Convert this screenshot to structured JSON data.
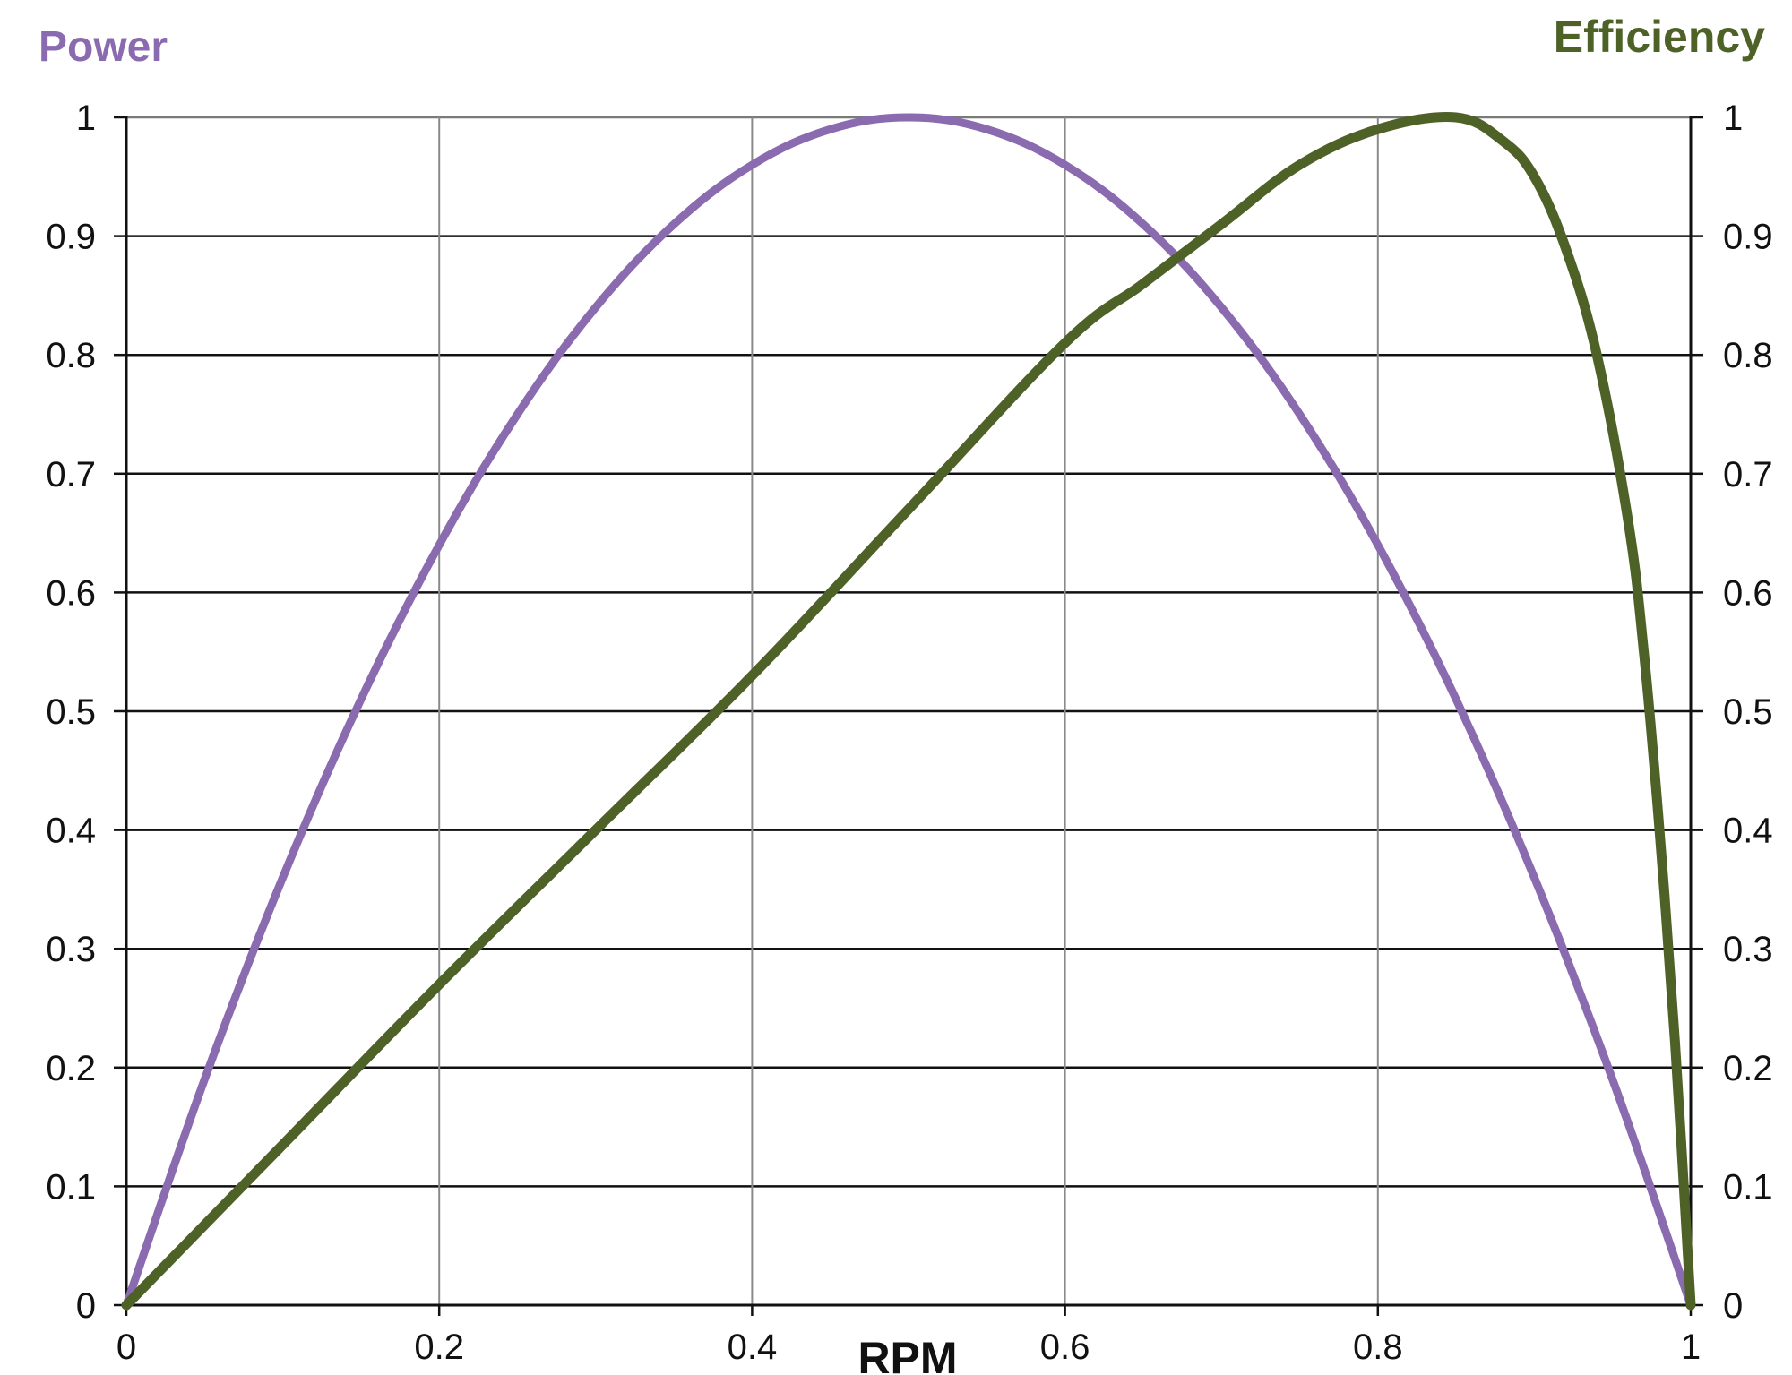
{
  "colors": {
    "power": "#8B6BB0",
    "efficiency": "#4E6228",
    "grid_h": "#111111",
    "grid_v": "#8a8a8a",
    "axis": "#111111"
  },
  "chart_data": {
    "type": "line",
    "title": "",
    "xlabel": "RPM",
    "ylabel_left": "Power",
    "ylabel_right": "Efficiency",
    "xlim": [
      0,
      1
    ],
    "ylim_left": [
      0,
      1
    ],
    "ylim_right": [
      0,
      1
    ],
    "grid": true,
    "x_ticks": [
      "0",
      "0.2",
      "0.4",
      "0.6",
      "0.8",
      "1"
    ],
    "y_ticks_left": [
      "0",
      "0.1",
      "0.2",
      "0.3",
      "0.4",
      "0.5",
      "0.6",
      "0.7",
      "0.8",
      "0.9",
      "1"
    ],
    "y_ticks_right": [
      "0",
      "0.1",
      "0.2",
      "0.3",
      "0.4",
      "0.5",
      "0.6",
      "0.7",
      "0.8",
      "0.9",
      "1"
    ],
    "series": [
      {
        "name": "Power",
        "axis": "left",
        "x": [
          0,
          0.05,
          0.1,
          0.15,
          0.2,
          0.25,
          0.3,
          0.35,
          0.4,
          0.45,
          0.5,
          0.55,
          0.6,
          0.65,
          0.7,
          0.75,
          0.8,
          0.85,
          0.9,
          0.95,
          1.0
        ],
        "y": [
          0,
          0.19,
          0.36,
          0.51,
          0.64,
          0.75,
          0.84,
          0.91,
          0.96,
          0.99,
          1.0,
          0.99,
          0.96,
          0.91,
          0.84,
          0.75,
          0.64,
          0.51,
          0.36,
          0.19,
          0
        ]
      },
      {
        "name": "Efficiency",
        "axis": "right",
        "x": [
          0,
          0.1,
          0.2,
          0.3,
          0.4,
          0.5,
          0.6,
          0.65,
          0.7,
          0.75,
          0.8,
          0.85,
          0.88,
          0.9,
          0.92,
          0.94,
          0.96,
          0.97,
          0.98,
          0.99,
          1.0
        ],
        "y": [
          0,
          0.135,
          0.27,
          0.4,
          0.53,
          0.67,
          0.81,
          0.86,
          0.91,
          0.96,
          0.99,
          1.0,
          0.98,
          0.95,
          0.89,
          0.8,
          0.66,
          0.55,
          0.4,
          0.22,
          0
        ]
      }
    ]
  }
}
